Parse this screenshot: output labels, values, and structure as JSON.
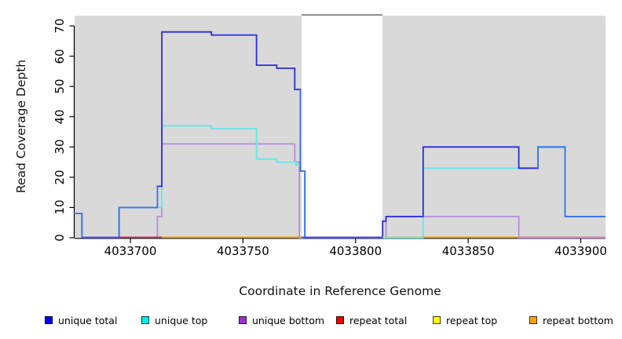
{
  "chart_data": {
    "type": "line",
    "step": true,
    "title": "",
    "xlabel": "Coordinate in Reference Genome",
    "ylabel": "Read Coverage Depth",
    "x_ticks": [
      "4033700",
      "4033750",
      "4033800",
      "4033850",
      "4033900"
    ],
    "x_tick_values": [
      4033700,
      4033750,
      4033800,
      4033850,
      4033900
    ],
    "y_ticks": [
      "0",
      "10",
      "20",
      "30",
      "40",
      "50",
      "60",
      "70"
    ],
    "y_tick_values": [
      0,
      10,
      20,
      30,
      40,
      50,
      60,
      70
    ],
    "xlim": [
      4033675,
      4033911
    ],
    "ylim": [
      0,
      73
    ],
    "grid": false,
    "legend_position": "bottom",
    "panel_bg": "#D9D9D9",
    "axis_color": "#000000",
    "no_data_region": {
      "x1": 4033776,
      "x2": 4033812,
      "fill": "#FFFFFF",
      "border_top": "#8F8F8F"
    },
    "series": [
      {
        "name": "unique total",
        "color": "#2B2BDC",
        "color_light": "#3E7BE9",
        "from_zero": false,
        "steps": [
          [
            4033675,
            8
          ],
          [
            4033678.5,
            0
          ],
          [
            4033695,
            10
          ],
          [
            4033712,
            17
          ],
          [
            4033714,
            68
          ],
          [
            4033736,
            67
          ],
          [
            4033756,
            57
          ],
          [
            4033765,
            56
          ],
          [
            4033773,
            49
          ],
          [
            4033775.5,
            22
          ],
          [
            4033777.5,
            0
          ],
          [
            4033812,
            5.5
          ],
          [
            4033813.5,
            7
          ],
          [
            4033830,
            30
          ],
          [
            4033872.5,
            23
          ],
          [
            4033881,
            30
          ],
          [
            4033893,
            7
          ]
        ],
        "end": 4033911,
        "light_ranges": [
          [
            4033675,
            4033678.5
          ],
          [
            4033695,
            4033712
          ],
          [
            4033775.5,
            4033777.5
          ],
          [
            4033881,
            4033911
          ]
        ]
      },
      {
        "name": "unique top",
        "color": "#63E8E8",
        "from_zero": true,
        "steps": [
          [
            4033695,
            10
          ],
          [
            4033714,
            37
          ],
          [
            4033736,
            36
          ],
          [
            4033756,
            26
          ],
          [
            4033765,
            25
          ],
          [
            4033773.5,
            24
          ],
          [
            4033775.5,
            22
          ],
          [
            4033777.5,
            0
          ],
          [
            4033830,
            23
          ],
          [
            4033881,
            30
          ],
          [
            4033893,
            7
          ]
        ],
        "end": 4033911
      },
      {
        "name": "unique bottom",
        "color": "#B48CDC",
        "from_zero": true,
        "steps": [
          [
            4033712,
            7
          ],
          [
            4033714,
            31
          ],
          [
            4033773,
            25
          ],
          [
            4033775,
            0
          ],
          [
            4033813.5,
            7
          ],
          [
            4033872.5,
            0
          ]
        ],
        "end": 4033911
      },
      {
        "name": "repeat total",
        "color": "#EE0000",
        "from_zero": false,
        "steps": [
          [
            4033695,
            0
          ]
        ],
        "end": 4033911
      },
      {
        "name": "repeat top",
        "color": "#FFFF00",
        "from_zero": false,
        "steps": [
          [
            4033714,
            0
          ]
        ],
        "end": 4033872.5
      },
      {
        "name": "repeat bottom",
        "color": "#FFA500",
        "from_zero": false,
        "steps": [
          [
            4033714,
            0
          ]
        ],
        "end": 4033872.5
      }
    ],
    "baseline_segments": [
      {
        "x1": 4033678.5,
        "x2": 4033695,
        "color": "#5B55E2"
      },
      {
        "x1": 4033695,
        "x2": 4033714,
        "color": "#CC3366"
      },
      {
        "x1": 4033714,
        "x2": 4033776,
        "color": "#FFA500"
      },
      {
        "x1": 4033776,
        "x2": 4033812,
        "color": "#4A4AE2"
      },
      {
        "x1": 4033812,
        "x2": 4033830,
        "color": "#98DBA0"
      },
      {
        "x1": 4033830,
        "x2": 4033872.5,
        "color": "#FFA500"
      },
      {
        "x1": 4033872.5,
        "x2": 4033911,
        "color": "#DC82AC"
      }
    ]
  },
  "legend": {
    "items": [
      {
        "label": "unique total",
        "color": "#0000EE"
      },
      {
        "label": "unique top",
        "color": "#00EEEE"
      },
      {
        "label": "unique bottom",
        "color": "#9A32CD"
      },
      {
        "label": "repeat total",
        "color": "#EE0000"
      },
      {
        "label": "repeat top",
        "color": "#FFFF00"
      },
      {
        "label": "repeat bottom",
        "color": "#FFA500"
      }
    ]
  }
}
